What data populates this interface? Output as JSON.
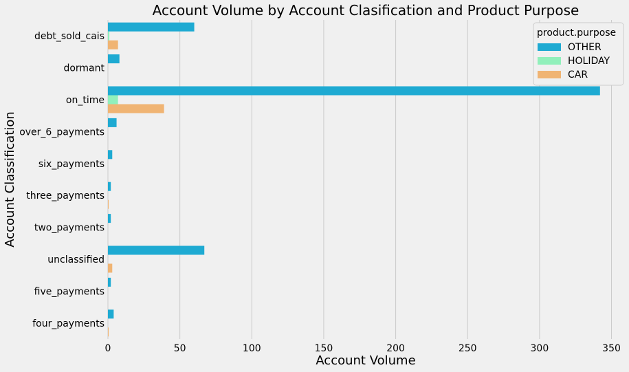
{
  "chart_data": {
    "type": "bar",
    "orientation": "horizontal",
    "title": "Account Volume by Account Clasification and Product Purpose",
    "xlabel": "Account Volume",
    "ylabel": "Account Classification",
    "xlim": [
      0,
      355
    ],
    "xticks": [
      0,
      50,
      100,
      150,
      200,
      250,
      300,
      350
    ],
    "grid": "vertical",
    "legend_title": "product.purpose",
    "legend_position": "top-right",
    "categories": [
      "debt_sold_cais",
      "dormant",
      "on_time",
      "over_6_payments",
      "six_payments",
      "three_payments",
      "two_payments",
      "unclassified",
      "five_payments",
      "four_payments"
    ],
    "series": [
      {
        "name": "OTHER",
        "color": "#1eaad2",
        "values": [
          60,
          8,
          342,
          6,
          3,
          2,
          2,
          67,
          2,
          4
        ]
      },
      {
        "name": "HOLIDAY",
        "color": "#91f0bb",
        "values": [
          1,
          0,
          7,
          0,
          0,
          0,
          0,
          0,
          0,
          0
        ]
      },
      {
        "name": "CAR",
        "color": "#f0b473",
        "values": [
          7,
          0,
          39,
          0,
          0,
          0.5,
          0,
          3,
          0,
          0.5
        ]
      }
    ]
  }
}
